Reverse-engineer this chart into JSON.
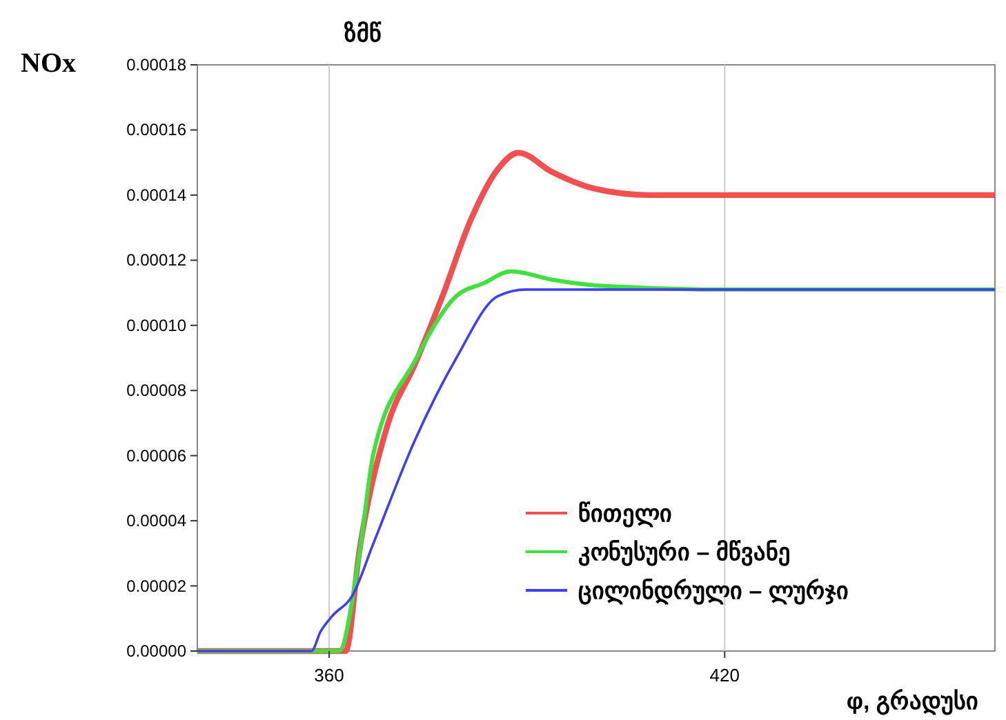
{
  "chart_data": {
    "type": "line",
    "xlabel": "φ, გრადუსი",
    "ylabel": "NOx",
    "annotations": [
      "ზმწ"
    ],
    "xlim": [
      340,
      461
    ],
    "xticks": [
      360,
      420
    ],
    "ylim": [
      0,
      0.00018
    ],
    "yticks": [
      {
        "value": 0,
        "label": "0.00000"
      },
      {
        "value": 2e-05,
        "label": "0.00002"
      },
      {
        "value": 4e-05,
        "label": "0.00004"
      },
      {
        "value": 6e-05,
        "label": "0.00006"
      },
      {
        "value": 8e-05,
        "label": "0.00008"
      },
      {
        "value": 0.0001,
        "label": "0.00010"
      },
      {
        "value": 0.00012,
        "label": "0.00012"
      },
      {
        "value": 0.00014,
        "label": "0.00014"
      },
      {
        "value": 0.00016,
        "label": "0.00016"
      },
      {
        "value": 0.00018,
        "label": "0.00018"
      }
    ],
    "grid": "x",
    "legend": "bottom right",
    "line_style": "solid",
    "series": [
      {
        "name": "წითელი",
        "color": "#f05050",
        "x": [
          340,
          362.5,
          364.6,
          368.8,
          373,
          377.2,
          381.4,
          385.6,
          388.7,
          393.9,
          400.2,
          408.6,
          420,
          461
        ],
        "values": [
          0,
          0,
          3.1e-05,
          6.9e-05,
          8.8e-05,
          0.000109,
          0.000132,
          0.000148,
          0.000153,
          0.000147,
          0.000142,
          0.00014,
          0.00014,
          0.00014
        ]
      },
      {
        "name": "კონუსური – მწვანე",
        "color": "#40e040",
        "x": [
          340,
          361.5,
          364.6,
          366.7,
          373,
          379.3,
          383.5,
          387.6,
          393.9,
          402.3,
          420,
          461
        ],
        "values": [
          0,
          0,
          3e-05,
          6.05e-05,
          8.9e-05,
          0.000109,
          0.000113,
          0.0001166,
          0.000114,
          0.000112,
          0.000111,
          0.000111
        ]
      },
      {
        "name": "ცილინდრული – ლურჯი",
        "color": "#4040f0",
        "x": [
          340,
          357.3,
          358.7,
          360.4,
          363.6,
          366.7,
          373,
          379.3,
          385.6,
          389.8,
          420,
          461
        ],
        "values": [
          0,
          0,
          6e-06,
          1.06e-05,
          1.73e-05,
          3.3e-05,
          6.47e-05,
          9e-05,
          0.000109,
          0.000111,
          0.000111,
          0.000111
        ]
      }
    ]
  }
}
